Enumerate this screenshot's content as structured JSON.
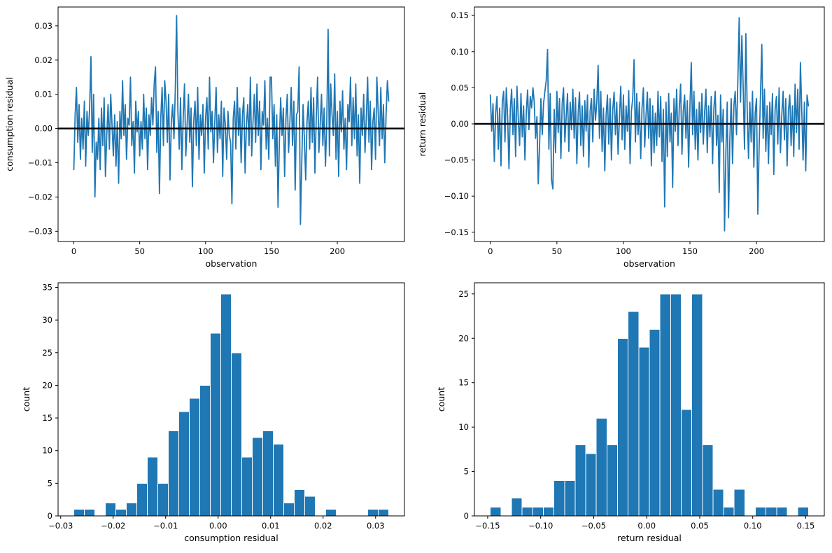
{
  "figure": {
    "background": "#ffffff",
    "accent_color": "#1f77b4",
    "layout": "2x2-subplot-grid"
  },
  "chart_data": [
    {
      "id": "consumption-residual-line",
      "type": "line",
      "title": "",
      "xlabel": "observation",
      "ylabel": "consumption residual",
      "xlim": [
        -11.95,
        250.95
      ],
      "ylim": [
        -0.033,
        0.0355
      ],
      "xticks": [
        0,
        50,
        100,
        150,
        200
      ],
      "yticks": [
        -0.03,
        -0.02,
        -0.01,
        0.0,
        0.01,
        0.02,
        0.03
      ],
      "xtick_decimals": 0,
      "ytick_decimals": 2,
      "grid": false,
      "zero_line": true,
      "zero_line_color": "#000000",
      "line_color": "#1f77b4",
      "x_start": 0,
      "x_step": 1,
      "value_scale": 0.001,
      "values": [
        -12,
        4,
        12,
        -4,
        7,
        -9,
        3,
        -6,
        8,
        -11,
        5,
        -2,
        6,
        21,
        -7,
        10,
        -20,
        -4,
        -9,
        3,
        -12,
        6,
        -5,
        9,
        -14,
        -2,
        7,
        -6,
        10,
        1,
        -8,
        4,
        -11,
        2,
        -16,
        5,
        -3,
        14,
        -2,
        7,
        -9,
        3,
        1,
        15,
        -5,
        2,
        -13,
        8,
        -1,
        5,
        -8,
        2,
        -6,
        10,
        -3,
        6,
        -12,
        4,
        -2,
        9,
        1,
        13,
        18,
        -7,
        5,
        -19,
        3,
        12,
        -5,
        14,
        8,
        -4,
        10,
        -15,
        2,
        7,
        -3,
        11,
        33,
        5,
        -6,
        9,
        -12,
        3,
        13,
        -8,
        1,
        10,
        -4,
        6,
        -17,
        2,
        8,
        -5,
        12,
        -9,
        4,
        -2,
        7,
        -13,
        3,
        9,
        -6,
        15,
        -1,
        5,
        -10,
        2,
        12,
        -7,
        4,
        -3,
        8,
        -14,
        6,
        1,
        -9,
        5,
        -2,
        -4,
        -22,
        3,
        8,
        -6,
        12,
        -2,
        6,
        -10,
        4,
        9,
        -13,
        1,
        7,
        -5,
        15,
        -8,
        2,
        10,
        -4,
        13,
        -2,
        8,
        -12,
        5,
        1,
        14,
        -6,
        3,
        -9,
        15,
        15,
        -3,
        7,
        -11,
        4,
        -23,
        -4,
        9,
        -2,
        6,
        -14,
        3,
        10,
        -7,
        2,
        12,
        -5,
        8,
        -18,
        4,
        5,
        18,
        -28,
        -10,
        7,
        -3,
        -15,
        2,
        8,
        -6,
        12,
        -4,
        9,
        -13,
        3,
        15,
        -7,
        1,
        10,
        -5,
        6,
        -11,
        2,
        29,
        -8,
        13,
        4,
        -2,
        16,
        -9,
        5,
        -14,
        8,
        -1,
        11,
        -6,
        3,
        -12,
        7,
        2,
        15,
        -5,
        9,
        -3,
        13,
        -8,
        4,
        -16,
        6,
        -2,
        10,
        -7,
        3,
        15,
        -4,
        8,
        -12,
        2,
        6,
        -9,
        15,
        5,
        -5,
        12,
        -3,
        7,
        -10,
        4,
        14,
        8
      ]
    },
    {
      "id": "return-residual-line",
      "type": "line",
      "title": "",
      "xlabel": "observation",
      "ylabel": "return residual",
      "xlim": [
        -11.95,
        250.95
      ],
      "ylim": [
        -0.1628,
        0.1618
      ],
      "xticks": [
        0,
        50,
        100,
        150,
        200
      ],
      "yticks": [
        -0.15,
        -0.1,
        -0.05,
        0.0,
        0.05,
        0.1,
        0.15
      ],
      "xtick_decimals": 0,
      "ytick_decimals": 2,
      "grid": false,
      "zero_line": true,
      "zero_line_color": "#000000",
      "line_color": "#1f77b4",
      "x_start": 0,
      "x_step": 1,
      "value_scale": 0.001,
      "values": [
        40,
        -10,
        28,
        -52,
        15,
        38,
        -35,
        22,
        -58,
        30,
        45,
        -25,
        50,
        10,
        -62,
        20,
        48,
        -15,
        35,
        -45,
        52,
        8,
        -30,
        42,
        -18,
        25,
        -50,
        15,
        47,
        -8,
        38,
        22,
        50,
        30,
        -20,
        10,
        -83,
        -30,
        35,
        -15,
        28,
        45,
        60,
        103,
        -35,
        42,
        -78,
        -90,
        20,
        -40,
        45,
        -12,
        35,
        -48,
        28,
        50,
        -25,
        10,
        42,
        -38,
        30,
        -8,
        48,
        -20,
        36,
        -55,
        15,
        44,
        -30,
        25,
        -45,
        32,
        -10,
        40,
        -60,
        18,
        35,
        -25,
        48,
        5,
        30,
        81,
        -20,
        45,
        -38,
        22,
        -65,
        12,
        40,
        -28,
        35,
        -50,
        20,
        44,
        -15,
        30,
        -42,
        8,
        52,
        -22,
        40,
        -35,
        25,
        -10,
        46,
        -55,
        18,
        35,
        89,
        -25,
        42,
        -15,
        30,
        -48,
        22,
        50,
        -32,
        12,
        44,
        -20,
        35,
        -58,
        25,
        -40,
        15,
        -30,
        45,
        -18,
        38,
        -52,
        20,
        -115,
        30,
        -45,
        42,
        -25,
        15,
        -88,
        35,
        -10,
        48,
        -30,
        22,
        55,
        -42,
        18,
        40,
        -20,
        32,
        -60,
        25,
        85,
        -15,
        45,
        -35,
        20,
        -50,
        30,
        -12,
        42,
        -28,
        15,
        48,
        -40,
        25,
        -18,
        38,
        -55,
        22,
        45,
        -30,
        12,
        -95,
        40,
        -25,
        20,
        -148,
        -40,
        30,
        -130,
        -20,
        35,
        -55,
        25,
        45,
        -15,
        60,
        147,
        30,
        122,
        50,
        -35,
        125,
        20,
        -48,
        30,
        -25,
        45,
        -60,
        15,
        35,
        -125,
        -30,
        40,
        110,
        -20,
        48,
        -38,
        25,
        -55,
        30,
        -15,
        42,
        -70,
        20,
        38,
        -28,
        50,
        -40,
        12,
        45,
        -22,
        35,
        -58,
        18,
        40,
        -30,
        25,
        -45,
        55,
        -12,
        48,
        -35,
        85,
        20,
        -50,
        30,
        -65,
        40,
        25
      ]
    },
    {
      "id": "consumption-residual-hist",
      "type": "histogram",
      "title": "",
      "xlabel": "consumption residual",
      "ylabel": "count",
      "xlim": [
        -0.0305,
        0.0355
      ],
      "ylim": [
        0,
        35.7
      ],
      "xticks": [
        -0.03,
        -0.02,
        -0.01,
        0.0,
        0.01,
        0.02,
        0.03
      ],
      "yticks": [
        0,
        5,
        10,
        15,
        20,
        25,
        30,
        35
      ],
      "xtick_decimals": 2,
      "ytick_decimals": 0,
      "grid": false,
      "bar_color": "#1f77b4",
      "bar_edge_color": "#ffffff",
      "bin_start": -0.0275,
      "bin_width": 0.002,
      "counts": [
        1,
        1,
        0,
        2,
        1,
        2,
        5,
        9,
        5,
        13,
        16,
        18,
        20,
        28,
        34,
        25,
        9,
        12,
        13,
        11,
        2,
        4,
        3,
        0,
        1,
        0,
        0,
        0,
        1,
        1
      ]
    },
    {
      "id": "return-residual-hist",
      "type": "histogram",
      "title": "",
      "xlabel": "return residual",
      "ylabel": "count",
      "xlim": [
        -0.1625,
        0.1675
      ],
      "ylim": [
        0,
        26.25
      ],
      "xticks": [
        -0.15,
        -0.1,
        -0.05,
        0.0,
        0.05,
        0.1,
        0.15
      ],
      "yticks": [
        0,
        5,
        10,
        15,
        20,
        25
      ],
      "xtick_decimals": 2,
      "ytick_decimals": 0,
      "grid": false,
      "bar_color": "#1f77b4",
      "bar_edge_color": "#ffffff",
      "bin_start": -0.1475,
      "bin_width": 0.01,
      "counts": [
        1,
        0,
        2,
        1,
        1,
        1,
        4,
        4,
        8,
        7,
        11,
        8,
        20,
        23,
        19,
        21,
        25,
        25,
        12,
        25,
        8,
        3,
        1,
        3,
        0,
        1,
        1,
        1,
        0,
        1
      ]
    }
  ]
}
